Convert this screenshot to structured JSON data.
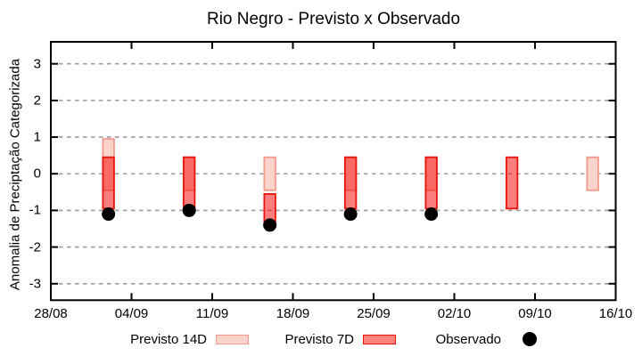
{
  "title": "Rio Negro - Previsto x Observado",
  "y_axis_label": "Anomalia de Preciptação Categorizada",
  "legend": {
    "items": [
      {
        "label": "Previsto 14D",
        "swatch": "box",
        "fill": "#fbd3cd",
        "stroke": "#f2998b"
      },
      {
        "label": "Previsto 7D",
        "swatch": "box",
        "fill": "#fc837c",
        "stroke": "#e8150d"
      },
      {
        "label": "Observado",
        "swatch": "dot",
        "fill": "#000000"
      }
    ]
  },
  "chart_data": {
    "type": "bar",
    "title": "Rio Negro - Previsto x Observado",
    "xlabel": "",
    "ylabel": "Anomalia de Preciptação Categorizada",
    "x_tick_labels": [
      "28/08",
      "04/09",
      "11/09",
      "18/09",
      "25/09",
      "02/10",
      "09/10",
      "16/10"
    ],
    "x_tick_day_offsets": [
      0,
      7,
      14,
      21,
      28,
      35,
      42,
      49
    ],
    "xlim_days": [
      0,
      49
    ],
    "y_tick_labels": [
      "3",
      "2",
      "1",
      "0",
      "-1",
      "-2",
      "-3"
    ],
    "y_tick_values": [
      3,
      2,
      1,
      0,
      -1,
      -2,
      -3
    ],
    "ylim": [
      -3.45,
      3.6
    ],
    "grid": {
      "horizontal": true,
      "vertical": false,
      "style": "dashed",
      "color": "#9c9c9c"
    },
    "legend_position": "bottom",
    "bar_width_days": 1,
    "series": [
      {
        "name": "Previsto 14D",
        "kind": "range-bar",
        "fill": "#fbd3cd",
        "stroke": "#f2998b",
        "points": [
          {
            "date": "02/09",
            "day": 5,
            "low": -0.45,
            "high": 0.95
          },
          {
            "date": "09/09",
            "day": 12,
            "low": -0.45,
            "high": 0.45
          },
          {
            "date": "16/09",
            "day": 19,
            "low": -0.45,
            "high": 0.45
          },
          {
            "date": "23/09",
            "day": 26,
            "low": -0.45,
            "high": 0.45
          },
          {
            "date": "30/09",
            "day": 33,
            "low": -0.45,
            "high": 0.45
          },
          {
            "date": "14/10",
            "day": 47,
            "low": -0.45,
            "high": 0.45
          }
        ]
      },
      {
        "name": "Previsto 7D",
        "kind": "range-bar",
        "fill": "rgba(250,10,5,0.52)",
        "stroke": "#e8150d",
        "points": [
          {
            "date": "02/09",
            "day": 5,
            "low": -0.95,
            "high": 0.45
          },
          {
            "date": "09/09",
            "day": 12,
            "low": -0.95,
            "high": 0.45
          },
          {
            "date": "16/09",
            "day": 19,
            "low": -1.45,
            "high": -0.55
          },
          {
            "date": "23/09",
            "day": 26,
            "low": -0.95,
            "high": 0.45
          },
          {
            "date": "30/09",
            "day": 33,
            "low": -0.95,
            "high": 0.45
          },
          {
            "date": "07/10",
            "day": 40,
            "low": -0.95,
            "high": 0.45
          }
        ]
      },
      {
        "name": "Observado",
        "kind": "point",
        "color": "#000000",
        "points": [
          {
            "date": "02/09",
            "day": 5,
            "value": -1.1
          },
          {
            "date": "09/09",
            "day": 12,
            "value": -1.0
          },
          {
            "date": "16/09",
            "day": 19,
            "value": -1.4
          },
          {
            "date": "23/09",
            "day": 26,
            "value": -1.1
          },
          {
            "date": "30/09",
            "day": 33,
            "value": -1.1
          }
        ]
      }
    ]
  }
}
